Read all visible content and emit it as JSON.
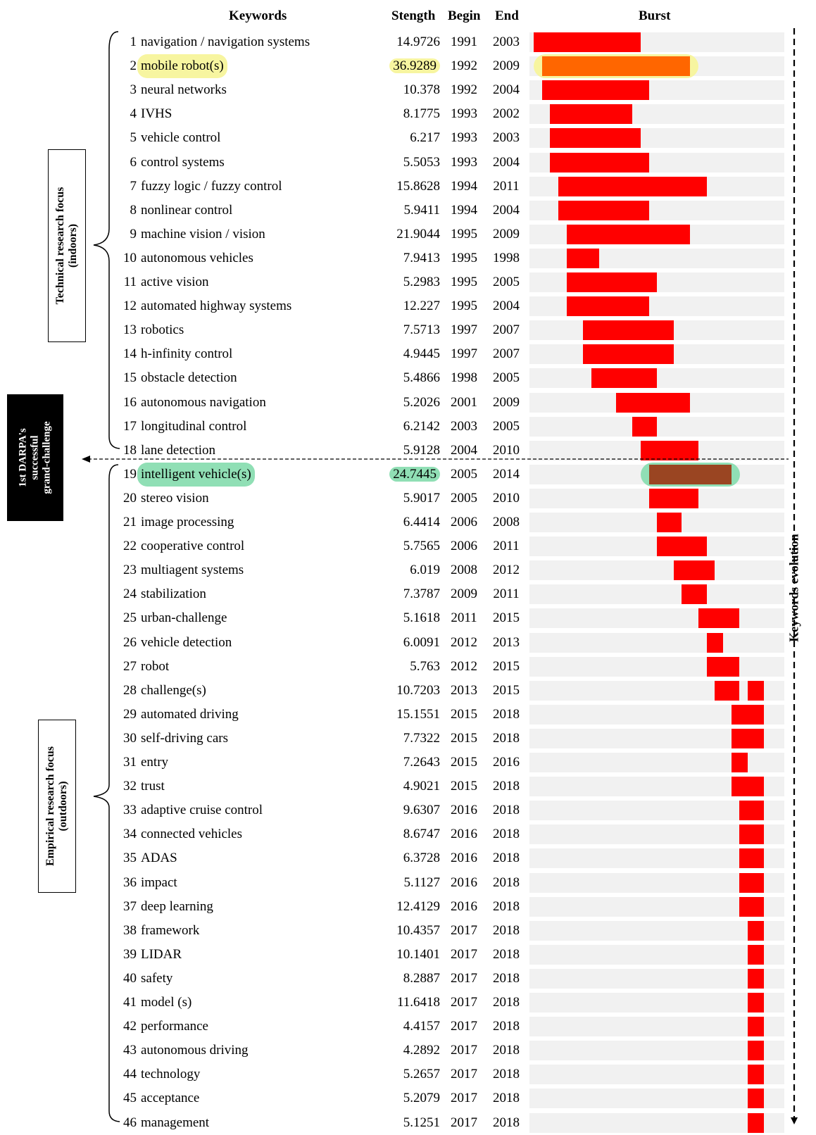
{
  "headers": {
    "keywords": "Keywords",
    "strength": "Stength",
    "begin": "Begin",
    "end": "End",
    "burst": "Burst"
  },
  "annotations": {
    "technical_focus": [
      "Technical research focus",
      "(indoors)"
    ],
    "empirical_focus": [
      "Empirical research focus",
      "(outdoors)"
    ],
    "darpa": [
      "1st DARPA's",
      "successful",
      "grand-challenge"
    ],
    "evolution": "Keywords evolution"
  },
  "colors": {
    "burst": "#ff0000",
    "highlight_yellow_bar": "#ff6600",
    "highlight_green_bar": "#9a4522",
    "track": "#f1f1f1",
    "yellow_glow": "#f7f5a0",
    "green_glow": "#90dfb5"
  },
  "chart_data": {
    "type": "table",
    "year_range": [
      1990,
      2019
    ],
    "columns": [
      "Keywords",
      "Stength",
      "Begin",
      "End",
      "Burst"
    ],
    "rows": [
      {
        "n": "1",
        "keyword": "navigation / navigation systems",
        "strength": "14.9726",
        "begin": "1991",
        "end": "2003"
      },
      {
        "n": "2",
        "keyword": "mobile robot(s)",
        "strength": "36.9289",
        "begin": "1992",
        "end": "2009",
        "highlight": "yellow"
      },
      {
        "n": "3",
        "keyword": "neural networks",
        "strength": "10.378",
        "begin": "1992",
        "end": "2004"
      },
      {
        "n": "4",
        "keyword": "IVHS",
        "strength": "8.1775",
        "begin": "1993",
        "end": "2002"
      },
      {
        "n": "5",
        "keyword": "vehicle control",
        "strength": "6.217",
        "begin": "1993",
        "end": "2003"
      },
      {
        "n": "6",
        "keyword": "control systems",
        "strength": "5.5053",
        "begin": "1993",
        "end": "2004"
      },
      {
        "n": "7",
        "keyword": "fuzzy logic / fuzzy control",
        "strength": "15.8628",
        "begin": "1994",
        "end": "2011"
      },
      {
        "n": "8",
        "keyword": "nonlinear control",
        "strength": "5.9411",
        "begin": "1994",
        "end": "2004"
      },
      {
        "n": "9",
        "keyword": "machine vision / vision",
        "strength": "21.9044",
        "begin": "1995",
        "end": "2009"
      },
      {
        "n": "10",
        "keyword": "autonomous vehicles",
        "strength": "7.9413",
        "begin": "1995",
        "end": "1998"
      },
      {
        "n": "11",
        "keyword": "active vision",
        "strength": "5.2983",
        "begin": "1995",
        "end": "2005"
      },
      {
        "n": "12",
        "keyword": "automated highway systems",
        "strength": "12.227",
        "begin": "1995",
        "end": "2004"
      },
      {
        "n": "13",
        "keyword": "robotics",
        "strength": "7.5713",
        "begin": "1997",
        "end": "2007"
      },
      {
        "n": "14",
        "keyword": "h-infinity control",
        "strength": "4.9445",
        "begin": "1997",
        "end": "2007"
      },
      {
        "n": "15",
        "keyword": "obstacle detection",
        "strength": "5.4866",
        "begin": "1998",
        "end": "2005"
      },
      {
        "n": "16",
        "keyword": "autonomous navigation",
        "strength": "5.2026",
        "begin": "2001",
        "end": "2009"
      },
      {
        "n": "17",
        "keyword": "longitudinal control",
        "strength": "6.2142",
        "begin": "2003",
        "end": "2005"
      },
      {
        "n": "18",
        "keyword": "lane detection",
        "strength": "5.9128",
        "begin": "2004",
        "end": "2010"
      },
      {
        "n": "19",
        "keyword": "intelligent vehicle(s)",
        "strength": "24.7445",
        "begin": "2005",
        "end": "2014",
        "highlight": "green"
      },
      {
        "n": "20",
        "keyword": "stereo vision",
        "strength": "5.9017",
        "begin": "2005",
        "end": "2010"
      },
      {
        "n": "21",
        "keyword": "image processing",
        "strength": "6.4414",
        "begin": "2006",
        "end": "2008"
      },
      {
        "n": "22",
        "keyword": "cooperative control",
        "strength": "5.7565",
        "begin": "2006",
        "end": "2011"
      },
      {
        "n": "23",
        "keyword": "multiagent systems",
        "strength": "6.019",
        "begin": "2008",
        "end": "2012"
      },
      {
        "n": "24",
        "keyword": "stabilization",
        "strength": "7.3787",
        "begin": "2009",
        "end": "2011"
      },
      {
        "n": "25",
        "keyword": "urban-challenge",
        "strength": "5.1618",
        "begin": "2011",
        "end": "2015"
      },
      {
        "n": "26",
        "keyword": "vehicle detection",
        "strength": "6.0091",
        "begin": "2012",
        "end": "2013"
      },
      {
        "n": "27",
        "keyword": "robot",
        "strength": "5.763",
        "begin": "2012",
        "end": "2015"
      },
      {
        "n": "28",
        "keyword": "challenge(s)",
        "strength": "10.7203",
        "begin": "2013",
        "end": "2015",
        "extra_burst": [
          2017,
          2018
        ]
      },
      {
        "n": "29",
        "keyword": "automated driving",
        "strength": "15.1551",
        "begin": "2015",
        "end": "2018"
      },
      {
        "n": "30",
        "keyword": "self-driving cars",
        "strength": "7.7322",
        "begin": "2015",
        "end": "2018"
      },
      {
        "n": "31",
        "keyword": "entry",
        "strength": "7.2643",
        "begin": "2015",
        "end": "2016"
      },
      {
        "n": "32",
        "keyword": "trust",
        "strength": "4.9021",
        "begin": "2015",
        "end": "2018"
      },
      {
        "n": "33",
        "keyword": "adaptive cruise control",
        "strength": "9.6307",
        "begin": "2016",
        "end": "2018"
      },
      {
        "n": "34",
        "keyword": "connected vehicles",
        "strength": "8.6747",
        "begin": "2016",
        "end": "2018"
      },
      {
        "n": "35",
        "keyword": "ADAS",
        "strength": "6.3728",
        "begin": "2016",
        "end": "2018"
      },
      {
        "n": "36",
        "keyword": "impact",
        "strength": "5.1127",
        "begin": "2016",
        "end": "2018"
      },
      {
        "n": "37",
        "keyword": "deep learning",
        "strength": "12.4129",
        "begin": "2016",
        "end": "2018"
      },
      {
        "n": "38",
        "keyword": "framework",
        "strength": "10.4357",
        "begin": "2017",
        "end": "2018"
      },
      {
        "n": "39",
        "keyword": "LIDAR",
        "strength": "10.1401",
        "begin": "2017",
        "end": "2018"
      },
      {
        "n": "40",
        "keyword": "safety",
        "strength": "8.2887",
        "begin": "2017",
        "end": "2018"
      },
      {
        "n": "41",
        "keyword": "model (s)",
        "strength": "11.6418",
        "begin": "2017",
        "end": "2018"
      },
      {
        "n": "42",
        "keyword": "performance",
        "strength": "4.4157",
        "begin": "2017",
        "end": "2018"
      },
      {
        "n": "43",
        "keyword": "autonomous driving",
        "strength": "4.2892",
        "begin": "2017",
        "end": "2018"
      },
      {
        "n": "44",
        "keyword": "technology",
        "strength": "5.2657",
        "begin": "2017",
        "end": "2018"
      },
      {
        "n": "45",
        "keyword": "acceptance",
        "strength": "5.2079",
        "begin": "2017",
        "end": "2018"
      },
      {
        "n": "46",
        "keyword": "management",
        "strength": "5.1251",
        "begin": "2017",
        "end": "2018"
      }
    ]
  }
}
